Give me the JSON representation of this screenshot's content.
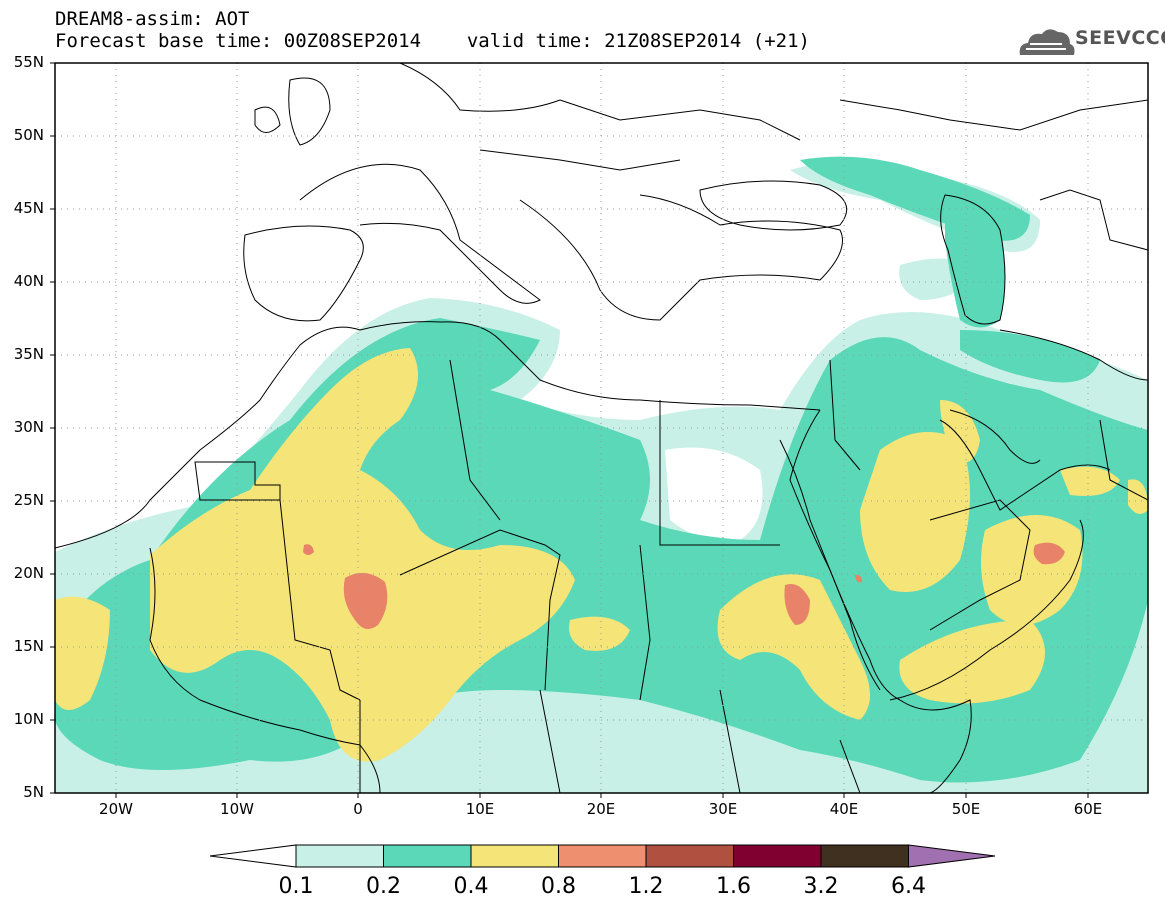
{
  "header": {
    "title": "DREAM8-assim: AOT",
    "base_time_label": "Forecast base time: 00Z08SEP2014",
    "valid_time_label": "valid time: 21Z08SEP2014 (+21)"
  },
  "logo": {
    "text": "SEEVCCC",
    "icon": "cloud-icon"
  },
  "map": {
    "variable": "Aerosol optical thickness",
    "projection": "cylindrical",
    "lon_range": [
      -25,
      65
    ],
    "lat_range": [
      5,
      55
    ],
    "grid": "dotted",
    "lat_labels": [
      "55N",
      "50N",
      "45N",
      "40N",
      "35N",
      "30N",
      "25N",
      "20N",
      "15N",
      "10N",
      "5N"
    ],
    "lon_labels": [
      "20W",
      "10W",
      "0",
      "10E",
      "20E",
      "30E",
      "40E",
      "50E",
      "60E"
    ]
  },
  "colorbar": {
    "labels": [
      "0.1",
      "0.2",
      "0.4",
      "0.8",
      "1.2",
      "1.6",
      "3.2",
      "6.4"
    ],
    "colors": [
      "#ffffff",
      "#c8f0e6",
      "#5ad8b8",
      "#f5e478",
      "#ee9070",
      "#b05040",
      "#800030",
      "#403020",
      "#a070b0"
    ]
  },
  "colors": {
    "level1": "#c8f0e6",
    "level2": "#5ad8b8",
    "level3": "#f5e478",
    "level4": "#e8836a",
    "coast": "#000000"
  }
}
